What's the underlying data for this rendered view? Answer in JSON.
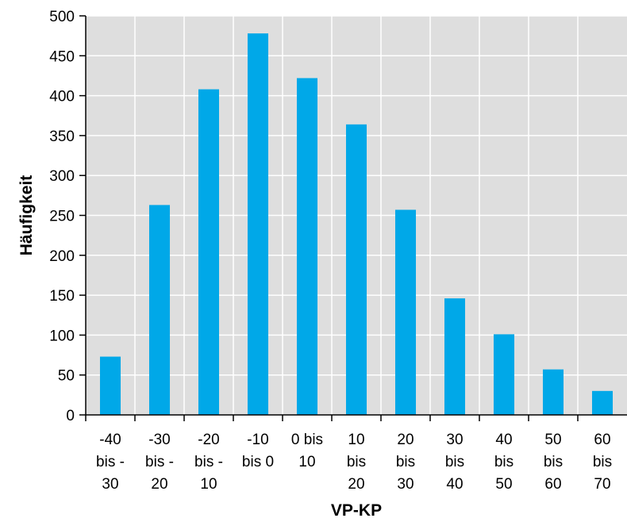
{
  "colors": {
    "plot_background": "#dedede",
    "bar": "#00a8e8",
    "grid": "#ffffff",
    "axis": "#000000"
  },
  "chart_data": {
    "type": "bar",
    "title": "",
    "xlabel": "VP-KP",
    "ylabel": "Häufigkeit",
    "ylim": [
      0,
      500
    ],
    "yticks": [
      0,
      50,
      100,
      150,
      200,
      250,
      300,
      350,
      400,
      450,
      500
    ],
    "grid": true,
    "legend": "none",
    "categories": [
      "-40 bis -30",
      "-30 bis -20",
      "-20 bis -10",
      "-10 bis 0",
      "0 bis 10",
      "10 bis 20",
      "20 bis 30",
      "30 bis 40",
      "40 bis 50",
      "50 bis 60",
      "60 bis 70"
    ],
    "category_lines": [
      [
        "-40",
        "bis -",
        "30"
      ],
      [
        "-30",
        "bis -",
        "20"
      ],
      [
        "-20",
        "bis -",
        "10"
      ],
      [
        "-10",
        "bis 0"
      ],
      [
        "0 bis",
        "10"
      ],
      [
        "10",
        "bis",
        "20"
      ],
      [
        "20",
        "bis",
        "30"
      ],
      [
        "30",
        "bis",
        "40"
      ],
      [
        "40",
        "bis",
        "50"
      ],
      [
        "50",
        "bis",
        "60"
      ],
      [
        "60",
        "bis",
        "70"
      ]
    ],
    "values": [
      73,
      263,
      408,
      478,
      422,
      364,
      257,
      146,
      101,
      57,
      30
    ]
  }
}
